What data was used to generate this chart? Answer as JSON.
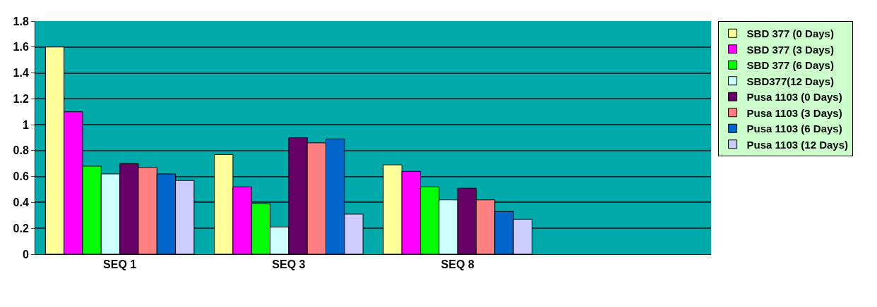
{
  "chart_data": {
    "type": "bar",
    "categories": [
      "SEQ 1",
      "SEQ 3",
      "SEQ 8",
      null
    ],
    "series": [
      {
        "name": "SBD 377 (0 Days)",
        "color": "#ffff99",
        "values": [
          1.6,
          0.77,
          0.69,
          null
        ]
      },
      {
        "name": "SBD 377 (3 Days)",
        "color": "#ff00ff",
        "values": [
          1.1,
          0.52,
          0.64,
          null
        ]
      },
      {
        "name": "SBD 377 (6 Days)",
        "color": "#00ff00",
        "values": [
          0.68,
          0.39,
          0.52,
          null
        ]
      },
      {
        "name": "SBD377(12 Days)",
        "color": "#ccffff",
        "values": [
          0.62,
          0.21,
          0.42,
          null
        ]
      },
      {
        "name": "Pusa 1103 (0 Days)",
        "color": "#660066",
        "values": [
          0.7,
          0.9,
          0.51,
          null
        ]
      },
      {
        "name": "Pusa 1103 (3 Days)",
        "color": "#ff8080",
        "values": [
          0.67,
          0.86,
          0.42,
          null
        ]
      },
      {
        "name": "Pusa 1103 (6 Days)",
        "color": "#0066cc",
        "values": [
          0.62,
          0.89,
          0.33,
          null
        ]
      },
      {
        "name": "Pusa 1103 (12 Days)",
        "color": "#ccccff",
        "values": [
          0.57,
          0.31,
          0.27,
          null
        ]
      }
    ],
    "ylim": [
      0,
      1.8
    ],
    "yticks": [
      0,
      0.2,
      0.4,
      0.6,
      0.8,
      1,
      1.2,
      1.4,
      1.6,
      1.8
    ],
    "grid": "y",
    "legend": "right"
  }
}
